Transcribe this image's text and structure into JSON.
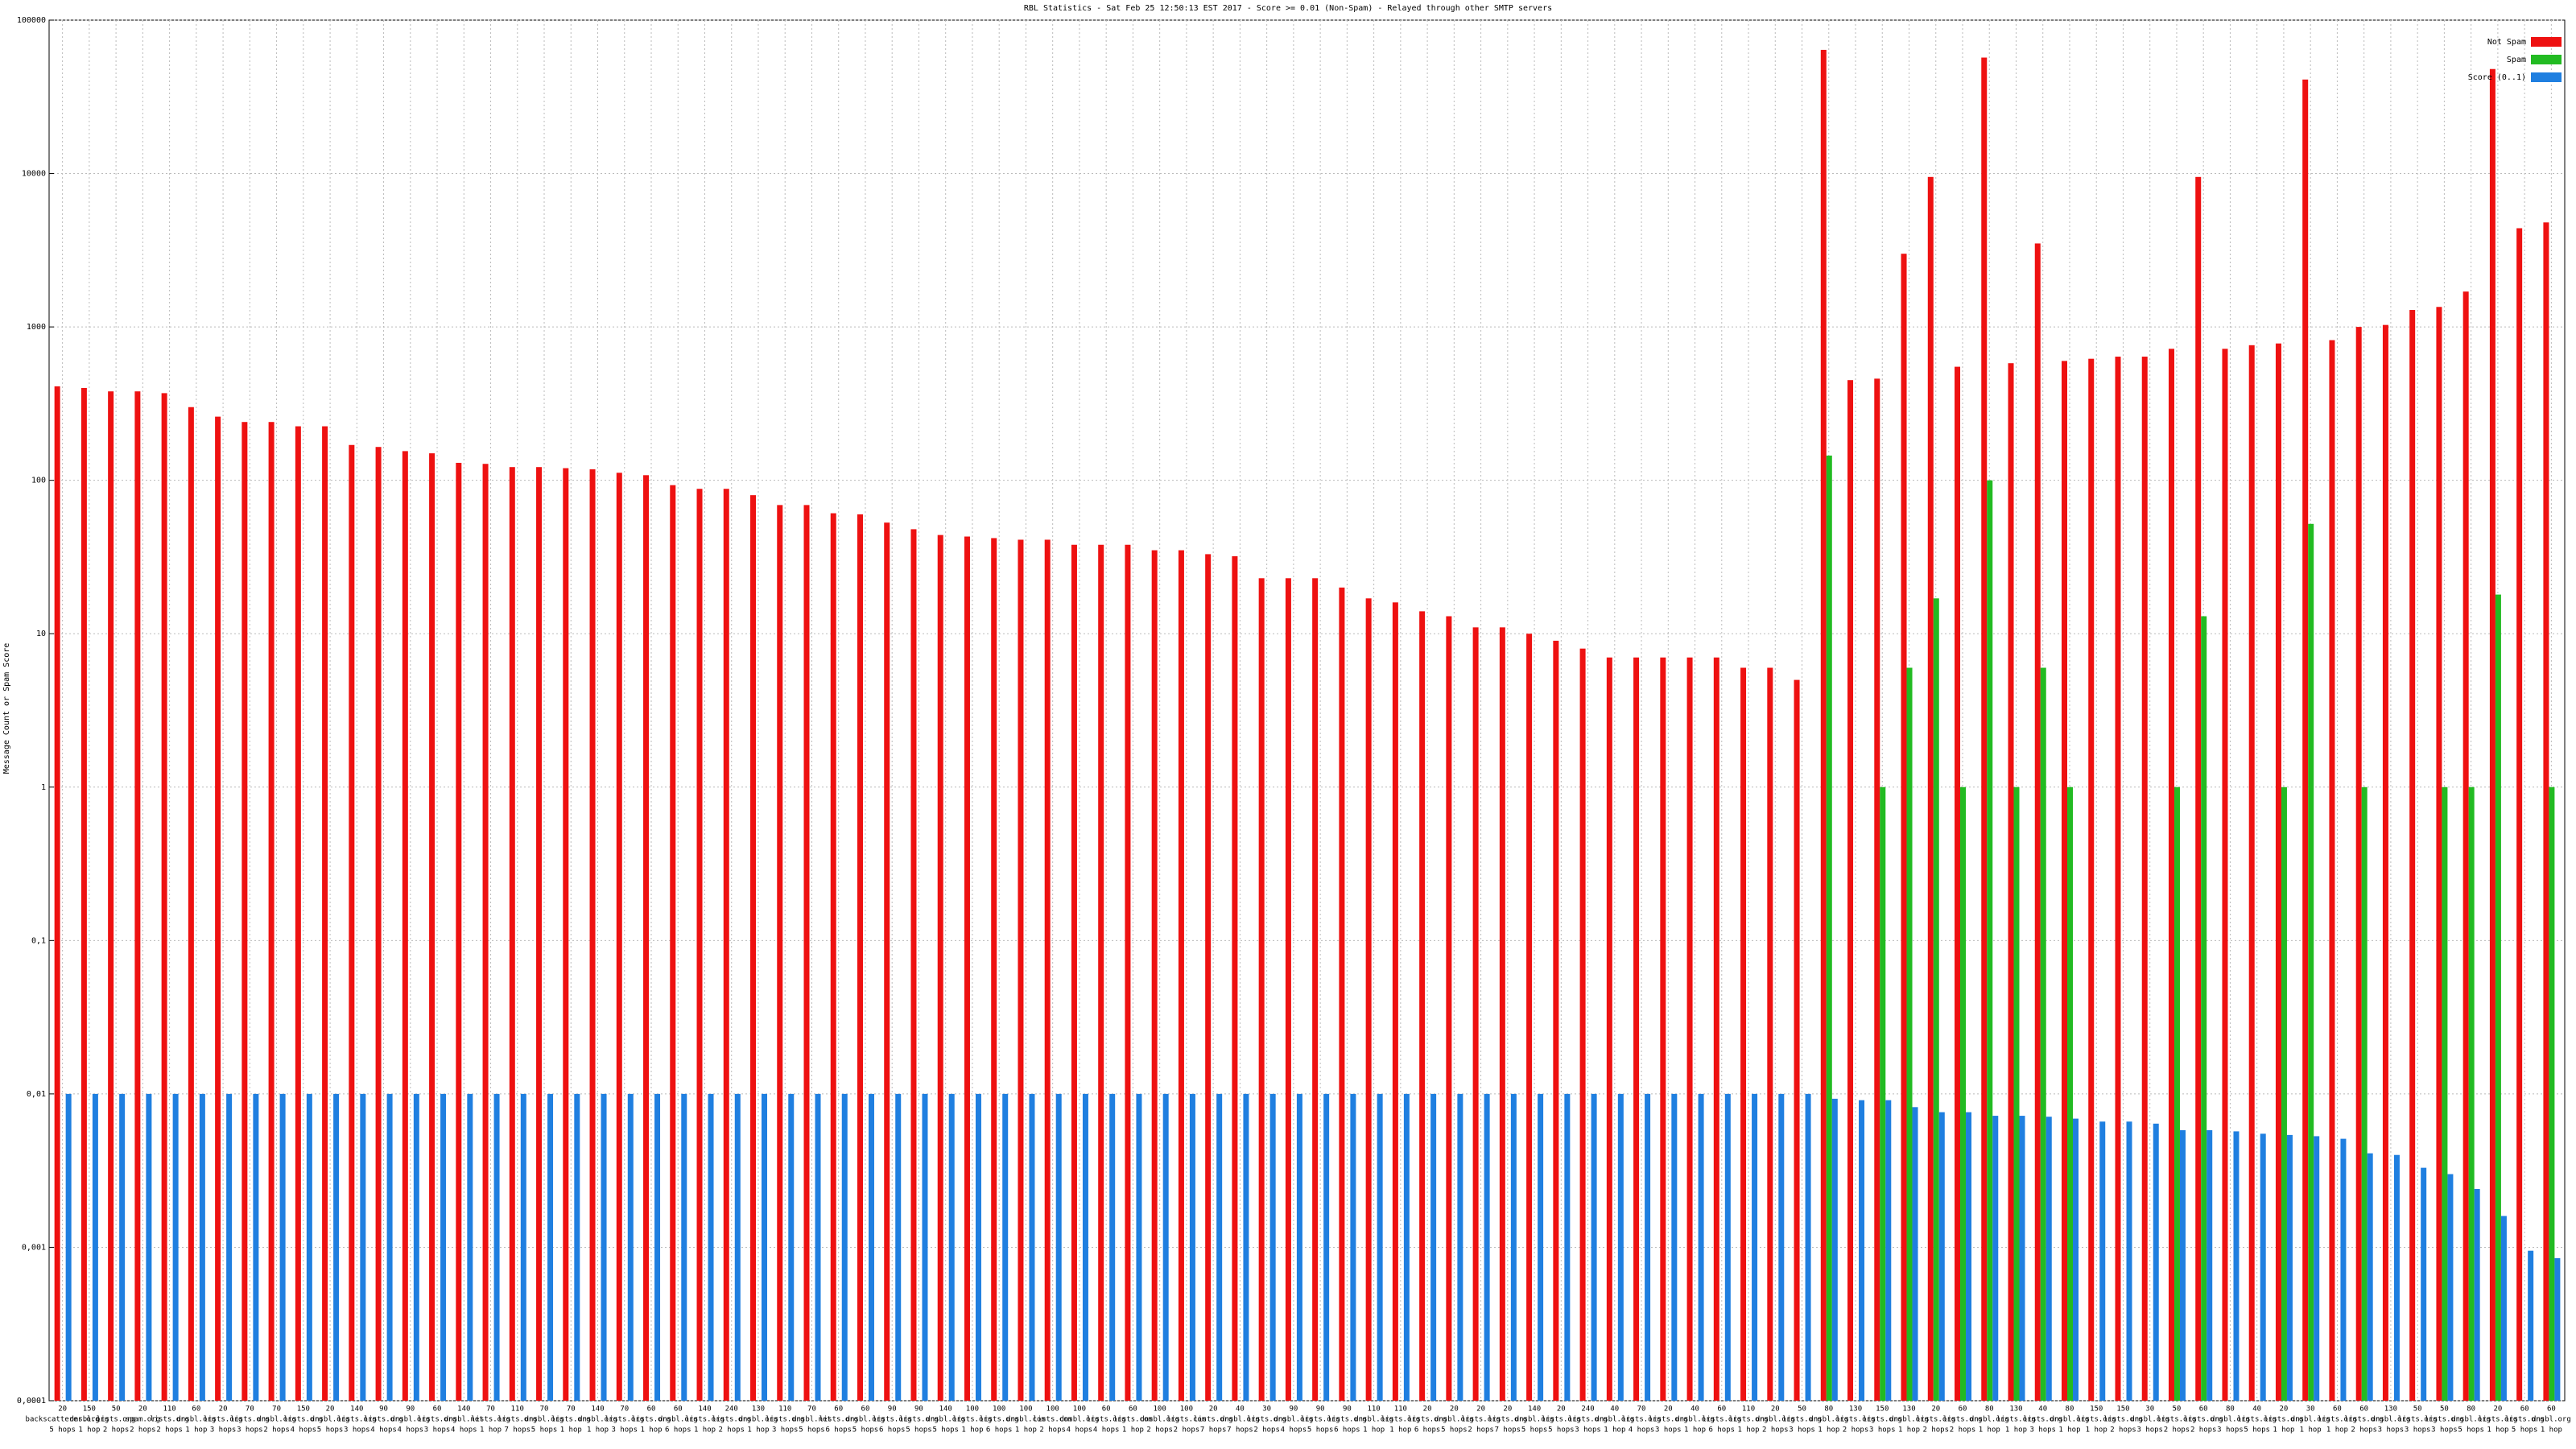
{
  "chart_data": {
    "type": "bar",
    "log_scale": true,
    "grid": true,
    "legend": "top-right",
    "title": "RBL Statistics - Sat Feb 25 12:50:13 EST 2017 - Score >= 0.01 (Non-Spam) - Relayed through other SMTP servers",
    "y_label": "Message Count or Spam Score",
    "ylim": [
      0.0001,
      100000
    ],
    "yticks": [
      {
        "value": 0.0001,
        "label": "0,0001"
      },
      {
        "value": 0.001,
        "label": "0,001"
      },
      {
        "value": 0.01,
        "label": "0,01"
      },
      {
        "value": 0.1,
        "label": "0,1"
      },
      1,
      10,
      100,
      1000,
      10000,
      100000
    ],
    "categories": [
      [
        "20",
        "backscatterer.org",
        "5 hops"
      ],
      [
        "150",
        "dnsbl.org",
        "1 hop"
      ],
      [
        "50",
        "lists.org",
        "2 hops"
      ],
      [
        "20",
        "spam.org",
        "2 hops"
      ],
      [
        "110",
        "lists.org",
        "2 hops"
      ],
      [
        "60",
        "dnsbl.org",
        "1 hop"
      ],
      [
        "20",
        "lists.org",
        "3 hops"
      ],
      [
        "70",
        "lists.org",
        "3 hops"
      ],
      [
        "70",
        "dnsbl.org",
        "2 hops"
      ],
      [
        "150",
        "lists.org",
        "4 hops"
      ],
      [
        "20",
        "dnsbl.org",
        "5 hops"
      ],
      [
        "140",
        "lists.org",
        "3 hops"
      ],
      [
        "90",
        "lists.org",
        "4 hops"
      ],
      [
        "90",
        "dnsbl.org",
        "4 hops"
      ],
      [
        "60",
        "lists.org",
        "3 hops"
      ],
      [
        "140",
        "dnsbl.net",
        "4 hops"
      ],
      [
        "70",
        "lists.org",
        "1 hop"
      ],
      [
        "110",
        "lists.org",
        "7 hops"
      ],
      [
        "70",
        "dnsbl.org",
        "5 hops"
      ],
      [
        "70",
        "lists.org",
        "1 hop"
      ],
      [
        "140",
        "dnsbl.org",
        "1 hop"
      ],
      [
        "70",
        "lists.org",
        "3 hops"
      ],
      [
        "60",
        "lists.org",
        "1 hop"
      ],
      [
        "60",
        "dnsbl.org",
        "6 hops"
      ],
      [
        "140",
        "lists.org",
        "1 hop"
      ],
      [
        "240",
        "lists.org",
        "2 hops"
      ],
      [
        "130",
        "dnsbl.org",
        "1 hop"
      ],
      [
        "110",
        "lists.org",
        "3 hops"
      ],
      [
        "70",
        "dnsbl.net",
        "5 hops"
      ],
      [
        "60",
        "lists.org",
        "6 hops"
      ],
      [
        "60",
        "dnsbl.org",
        "5 hops"
      ],
      [
        "90",
        "lists.org",
        "6 hops"
      ],
      [
        "90",
        "lists.org",
        "5 hops"
      ],
      [
        "140",
        "dnsbl.org",
        "5 hops"
      ],
      [
        "100",
        "lists.org",
        "1 hop"
      ],
      [
        "100",
        "lists.org",
        "6 hops"
      ],
      [
        "100",
        "dnsbl.com",
        "1 hop"
      ],
      [
        "100",
        "lists.com",
        "2 hops"
      ],
      [
        "100",
        "dnsbl.org",
        "4 hops"
      ],
      [
        "60",
        "lists.org",
        "4 hops"
      ],
      [
        "60",
        "lists.com",
        "1 hop"
      ],
      [
        "100",
        "dnsbl.org",
        "2 hops"
      ],
      [
        "100",
        "lists.com",
        "2 hops"
      ],
      [
        "20",
        "lists.org",
        "7 hops"
      ],
      [
        "40",
        "dnsbl.org",
        "7 hops"
      ],
      [
        "30",
        "lists.org",
        "2 hops"
      ],
      [
        "90",
        "dnsbl.org",
        "4 hops"
      ],
      [
        "90",
        "lists.org",
        "5 hops"
      ],
      [
        "90",
        "lists.org",
        "6 hops"
      ],
      [
        "110",
        "dnsbl.org",
        "1 hop"
      ],
      [
        "110",
        "lists.org",
        "1 hop"
      ],
      [
        "20",
        "lists.org",
        "6 hops"
      ],
      [
        "20",
        "dnsbl.org",
        "5 hops"
      ],
      [
        "20",
        "lists.org",
        "2 hops"
      ],
      [
        "20",
        "lists.org",
        "7 hops"
      ],
      [
        "140",
        "dnsbl.org",
        "5 hops"
      ],
      [
        "20",
        "lists.org",
        "5 hops"
      ],
      [
        "240",
        "lists.org",
        "3 hops"
      ],
      [
        "40",
        "dnsbl.org",
        "1 hop"
      ],
      [
        "70",
        "lists.org",
        "4 hops"
      ],
      [
        "20",
        "lists.org",
        "3 hops"
      ],
      [
        "40",
        "dnsbl.org",
        "1 hop"
      ],
      [
        "60",
        "lists.org",
        "6 hops"
      ],
      [
        "110",
        "lists.org",
        "1 hop"
      ],
      [
        "20",
        "dnsbl.org",
        "2 hops"
      ],
      [
        "50",
        "lists.org",
        "3 hops"
      ],
      [
        "80",
        "dnsbl.org",
        "1 hop"
      ],
      [
        "130",
        "lists.org",
        "2 hops"
      ],
      [
        "150",
        "lists.org",
        "3 hops"
      ],
      [
        "130",
        "dnsbl.org",
        "1 hop"
      ],
      [
        "20",
        "lists.org",
        "2 hops"
      ],
      [
        "60",
        "lists.org",
        "2 hops"
      ],
      [
        "80",
        "dnsbl.org",
        "1 hop"
      ],
      [
        "130",
        "lists.org",
        "1 hop"
      ],
      [
        "40",
        "lists.org",
        "3 hops"
      ],
      [
        "80",
        "dnsbl.org",
        "1 hop"
      ],
      [
        "150",
        "lists.org",
        "1 hop"
      ],
      [
        "150",
        "lists.org",
        "2 hops"
      ],
      [
        "30",
        "dnsbl.org",
        "3 hops"
      ],
      [
        "50",
        "lists.org",
        "2 hops"
      ],
      [
        "60",
        "lists.org",
        "2 hops"
      ],
      [
        "80",
        "dnsbl.org",
        "3 hops"
      ],
      [
        "40",
        "lists.org",
        "5 hops"
      ],
      [
        "20",
        "lists.org",
        "1 hop"
      ],
      [
        "30",
        "dnsbl.org",
        "1 hop"
      ],
      [
        "60",
        "lists.org",
        "1 hop"
      ],
      [
        "60",
        "lists.org",
        "2 hops"
      ],
      [
        "130",
        "dnsbl.org",
        "3 hops"
      ],
      [
        "50",
        "lists.org",
        "3 hops"
      ],
      [
        "50",
        "lists.org",
        "3 hops"
      ],
      [
        "80",
        "dnsbl.org",
        "5 hops"
      ],
      [
        "20",
        "lists.org",
        "1 hop"
      ],
      [
        "60",
        "lists.org",
        "5 hops"
      ],
      [
        "60",
        "dnsbl.org",
        "1 hop"
      ]
    ],
    "series": [
      {
        "name": "Not Spam",
        "color": "#ee1111",
        "values": [
          410,
          400,
          380,
          380,
          370,
          300,
          260,
          240,
          240,
          225,
          225,
          170,
          165,
          155,
          150,
          130,
          128,
          122,
          122,
          120,
          118,
          112,
          108,
          93,
          88,
          88,
          80,
          69,
          69,
          61,
          60,
          53,
          48,
          44,
          43,
          42,
          41,
          41,
          38,
          38,
          38,
          35,
          35,
          33,
          32,
          23,
          23,
          23,
          20,
          17,
          16,
          14,
          13,
          11,
          11,
          10,
          9,
          8,
          7,
          7,
          7,
          7,
          7,
          6,
          6,
          5,
          64000,
          450,
          460,
          3000,
          9500,
          550,
          57000,
          580,
          3500,
          600,
          620,
          640,
          640,
          720,
          9500,
          720,
          760,
          780,
          41000,
          820,
          1000,
          1030,
          1290,
          1350,
          1700,
          48000,
          4400,
          4800
        ]
      },
      {
        "name": "Spam",
        "color": "#22bb22",
        "values": [
          null,
          null,
          null,
          null,
          null,
          null,
          null,
          null,
          null,
          null,
          null,
          null,
          null,
          null,
          null,
          null,
          null,
          null,
          null,
          null,
          null,
          null,
          null,
          null,
          null,
          null,
          null,
          null,
          null,
          null,
          null,
          null,
          null,
          null,
          null,
          null,
          null,
          null,
          null,
          null,
          null,
          null,
          null,
          null,
          null,
          null,
          null,
          null,
          null,
          null,
          null,
          null,
          null,
          null,
          null,
          null,
          null,
          null,
          null,
          null,
          null,
          null,
          null,
          null,
          null,
          null,
          145,
          null,
          1,
          6,
          17,
          1,
          100,
          1,
          6,
          1,
          null,
          null,
          null,
          1,
          13,
          null,
          null,
          1,
          52,
          null,
          1,
          null,
          null,
          1,
          1,
          18,
          null,
          1
        ]
      },
      {
        "name": "Score (0..1)",
        "color": "#1f7fe0",
        "values": [
          0.01,
          0.01,
          0.01,
          0.01,
          0.01,
          0.01,
          0.01,
          0.01,
          0.01,
          0.01,
          0.01,
          0.01,
          0.01,
          0.01,
          0.01,
          0.01,
          0.01,
          0.01,
          0.01,
          0.01,
          0.01,
          0.01,
          0.01,
          0.01,
          0.01,
          0.01,
          0.01,
          0.01,
          0.01,
          0.01,
          0.01,
          0.01,
          0.01,
          0.01,
          0.01,
          0.01,
          0.01,
          0.01,
          0.01,
          0.01,
          0.01,
          0.01,
          0.01,
          0.01,
          0.01,
          0.01,
          0.01,
          0.01,
          0.01,
          0.01,
          0.01,
          0.01,
          0.01,
          0.01,
          0.01,
          0.01,
          0.01,
          0.01,
          0.01,
          0.01,
          0.01,
          0.01,
          0.01,
          0.01,
          0.01,
          0.01,
          0.0093,
          0.0091,
          0.0091,
          0.0082,
          0.0076,
          0.0076,
          0.0072,
          0.0072,
          0.0071,
          0.0069,
          0.0066,
          0.0066,
          0.0064,
          0.0058,
          0.0058,
          0.0057,
          0.0055,
          0.0054,
          0.0053,
          0.0051,
          0.0041,
          0.004,
          0.0033,
          0.003,
          0.0024,
          0.0016,
          0.00095,
          0.00085
        ]
      }
    ]
  }
}
